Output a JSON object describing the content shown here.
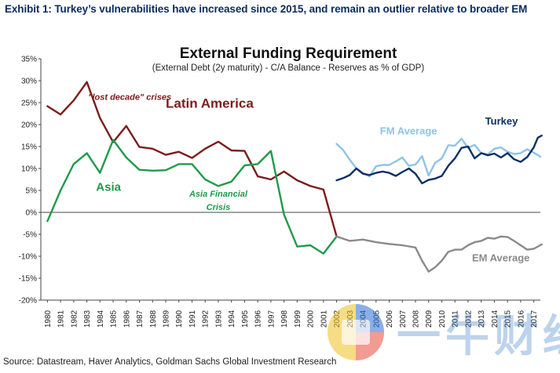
{
  "header": {
    "exhibit_title": "Exhibit 1: Turkey’s vulnerabilities have increased since 2015, and remain an outlier relative to broader EM"
  },
  "source": "Source: Datastream, Haver Analytics, Goldman Sachs Global Investment Research",
  "watermark": {
    "text": "一牛财经"
  },
  "chart_data": {
    "type": "line",
    "title": "External Funding Requirement",
    "subtitle": "(External Debt (2y maturity) - C/A Balance - Reserves as % of GDP)",
    "xlabel": "",
    "ylabel": "",
    "ylim": [
      -20,
      35
    ],
    "yticks": [
      -20,
      -15,
      -10,
      -5,
      0,
      5,
      10,
      15,
      20,
      25,
      30,
      35
    ],
    "ytick_labels": [
      "-20%",
      "-15%",
      "-10%",
      "-5%",
      "0%",
      "5%",
      "10%",
      "15%",
      "20%",
      "25%",
      "30%",
      "35%"
    ],
    "xlim": [
      1980,
      2018
    ],
    "xticks": [
      "1980",
      "1981",
      "1982",
      "1983",
      "1984",
      "1985",
      "1986",
      "1987",
      "1988",
      "1989",
      "1990",
      "1991",
      "1992",
      "1993",
      "1994",
      "1995",
      "1996",
      "1997",
      "1998",
      "1999",
      "2000",
      "2001",
      "2002",
      "2003",
      "2004",
      "2005",
      "2006",
      "2007",
      "2008",
      "2009",
      "2010",
      "2011",
      "2012",
      "2013",
      "2014",
      "2015",
      "2016",
      "2017"
    ],
    "colors": {
      "latin_america": "#7b1c1c",
      "asia": "#1f9a4a",
      "turkey": "#0b2f66",
      "fm_average": "#8ec3e6",
      "em_average": "#8a8a8a",
      "axis": "#444444"
    },
    "series": [
      {
        "name": "Latin America",
        "key": "latin_america",
        "x": [
          1980,
          1981,
          1982,
          1983,
          1984,
          1985,
          1986,
          1987,
          1988,
          1989,
          1990,
          1991,
          1992,
          1993,
          1994,
          1995,
          1996,
          1997,
          1998,
          1999,
          2000,
          2001,
          2002
        ],
        "values": [
          24.2,
          22.3,
          25.5,
          29.7,
          21.5,
          16.0,
          19.7,
          14.9,
          14.5,
          13.1,
          13.8,
          12.4,
          14.5,
          16.1,
          14.1,
          14.0,
          8.2,
          7.5,
          9.3,
          7.3,
          6.0,
          5.2,
          -5.5
        ]
      },
      {
        "name": "Asia",
        "key": "asia",
        "x": [
          1980,
          1981,
          1982,
          1983,
          1984,
          1985,
          1986,
          1987,
          1988,
          1989,
          1990,
          1991,
          1992,
          1993,
          1994,
          1995,
          1996,
          1997,
          1998,
          1999,
          2000,
          2001,
          2002
        ],
        "values": [
          -2.0,
          5.0,
          11.0,
          13.5,
          9.0,
          16.5,
          12.5,
          9.7,
          9.5,
          9.6,
          11.0,
          11.0,
          7.5,
          6.0,
          7.0,
          10.7,
          11.0,
          14.0,
          -0.5,
          -7.8,
          -7.5,
          -9.4,
          -5.5
        ]
      },
      {
        "name": "FM Average",
        "key": "fm_average",
        "x": [
          2002,
          2002.5,
          2003,
          2003.5,
          2004,
          2004.5,
          2005,
          2005.5,
          2006,
          2006.5,
          2007,
          2007.5,
          2008,
          2008.5,
          2009,
          2009.5,
          2010,
          2010.5,
          2011,
          2011.5,
          2012,
          2012.5,
          2013,
          2013.5,
          2014,
          2014.5,
          2015,
          2015.5,
          2016,
          2016.5,
          2017,
          2017.5
        ],
        "values": [
          15.6,
          14.2,
          12.0,
          10.0,
          9.0,
          8.2,
          10.5,
          10.8,
          10.8,
          11.6,
          12.5,
          10.6,
          10.9,
          12.8,
          8.4,
          11.3,
          12.3,
          15.3,
          15.2,
          16.8,
          14.7,
          15.4,
          13.5,
          13.2,
          14.5,
          14.8,
          13.8,
          13.3,
          13.5,
          14.4,
          13.6,
          12.7
        ]
      },
      {
        "name": "Turkey",
        "key": "turkey",
        "x": [
          2002,
          2002.5,
          2003,
          2003.5,
          2004,
          2004.5,
          2005,
          2005.5,
          2006,
          2006.5,
          2007,
          2007.5,
          2008,
          2008.5,
          2009,
          2009.5,
          2010,
          2010.5,
          2011,
          2011.5,
          2012,
          2012.5,
          2013,
          2013.5,
          2014,
          2014.5,
          2015,
          2015.5,
          2016,
          2016.5,
          2017,
          2017.3,
          2017.6
        ],
        "values": [
          7.3,
          7.8,
          8.5,
          10.0,
          8.8,
          8.5,
          9.0,
          9.3,
          9.0,
          8.3,
          9.2,
          10.0,
          8.8,
          6.6,
          7.4,
          7.7,
          8.3,
          10.6,
          12.3,
          14.7,
          15.0,
          12.3,
          13.5,
          13.0,
          13.4,
          12.5,
          13.5,
          12.1,
          11.5,
          12.6,
          14.8,
          17.0,
          17.5
        ]
      },
      {
        "name": "EM Average",
        "key": "em_average",
        "x": [
          2002,
          2003,
          2004,
          2005,
          2006,
          2007,
          2008,
          2008.5,
          2009,
          2009.5,
          2010,
          2010.5,
          2011,
          2011.5,
          2012,
          2012.5,
          2013,
          2013.5,
          2014,
          2014.5,
          2015,
          2015.5,
          2016,
          2016.5,
          2017,
          2017.6
        ],
        "values": [
          -5.5,
          -6.5,
          -6.2,
          -6.8,
          -7.2,
          -7.5,
          -8.0,
          -11.0,
          -13.5,
          -12.5,
          -11.0,
          -9.0,
          -8.5,
          -8.5,
          -7.5,
          -6.8,
          -6.5,
          -5.8,
          -6.0,
          -5.5,
          -5.6,
          -6.5,
          -7.5,
          -8.5,
          -8.3,
          -7.3
        ]
      }
    ],
    "annotations": [
      {
        "text": "Latin America",
        "key": "latin_america",
        "x": 1989.5,
        "y": 23.8,
        "size": 17,
        "weight": "bold",
        "style": "normal",
        "anchor": "start"
      },
      {
        "text": "Asia",
        "key": "asia",
        "x": 1984.2,
        "y": 4.9,
        "size": 15,
        "weight": "bold",
        "style": "normal",
        "anchor": "start"
      },
      {
        "text": "\"lost decade\" crises",
        "key": "latin_america",
        "x": 1983.6,
        "y": 25.6,
        "size": 11,
        "weight": "bold",
        "style": "italic",
        "anchor": "start"
      },
      {
        "text": "Asia Financial",
        "key": "asia",
        "x": 1993.5,
        "y": 3.6,
        "size": 11,
        "weight": "bold",
        "style": "italic",
        "anchor": "middle"
      },
      {
        "text": "Crisis",
        "key": "asia",
        "x": 1993.5,
        "y": 0.5,
        "size": 11,
        "weight": "bold",
        "style": "italic",
        "anchor": "middle"
      },
      {
        "text": "FM Average",
        "key": "fm_average",
        "x": 2005.8,
        "y": 17.8,
        "size": 13,
        "weight": "bold",
        "style": "normal",
        "anchor": "start"
      },
      {
        "text": "Turkey",
        "key": "turkey",
        "x": 2013.8,
        "y": 20.0,
        "size": 13,
        "weight": "bold",
        "style": "normal",
        "anchor": "start"
      },
      {
        "text": "EM Average",
        "key": "em_average",
        "x": 2012.8,
        "y": -11.2,
        "size": 13,
        "weight": "bold",
        "style": "normal",
        "anchor": "start"
      }
    ]
  }
}
